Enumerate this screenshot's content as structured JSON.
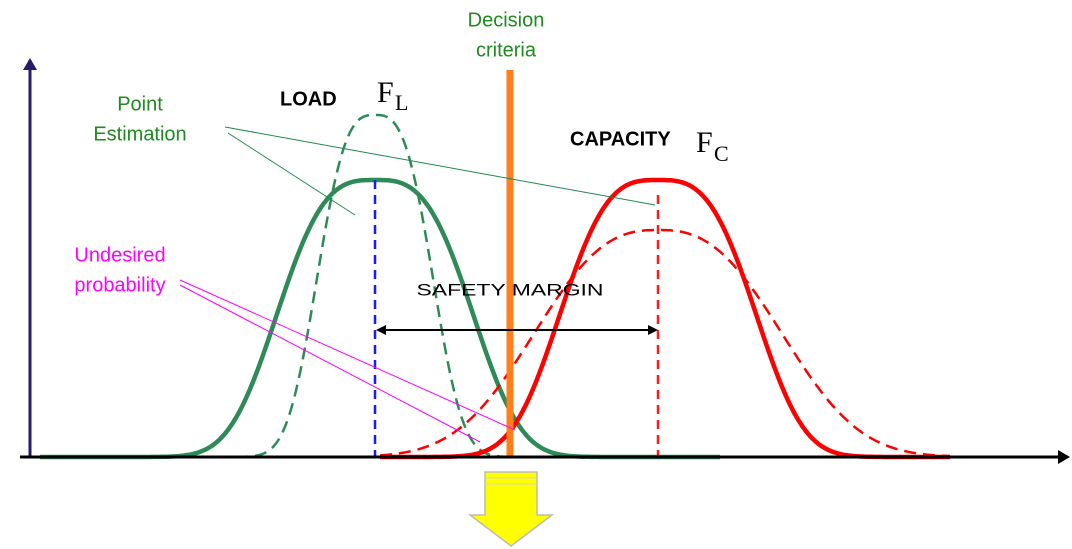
{
  "labels": {
    "decision_criteria": [
      "Decision",
      "criteria"
    ],
    "point_estimation": [
      "Point",
      "Estimation"
    ],
    "undesired_probability": [
      "Undesired",
      "probability"
    ],
    "load": "LOAD",
    "load_symbol": "F",
    "load_subscript": "L",
    "capacity": "CAPACITY",
    "capacity_symbol": "F",
    "capacity_subscript": "C",
    "safety_margin": "SAFETY MARGIN"
  }
}
